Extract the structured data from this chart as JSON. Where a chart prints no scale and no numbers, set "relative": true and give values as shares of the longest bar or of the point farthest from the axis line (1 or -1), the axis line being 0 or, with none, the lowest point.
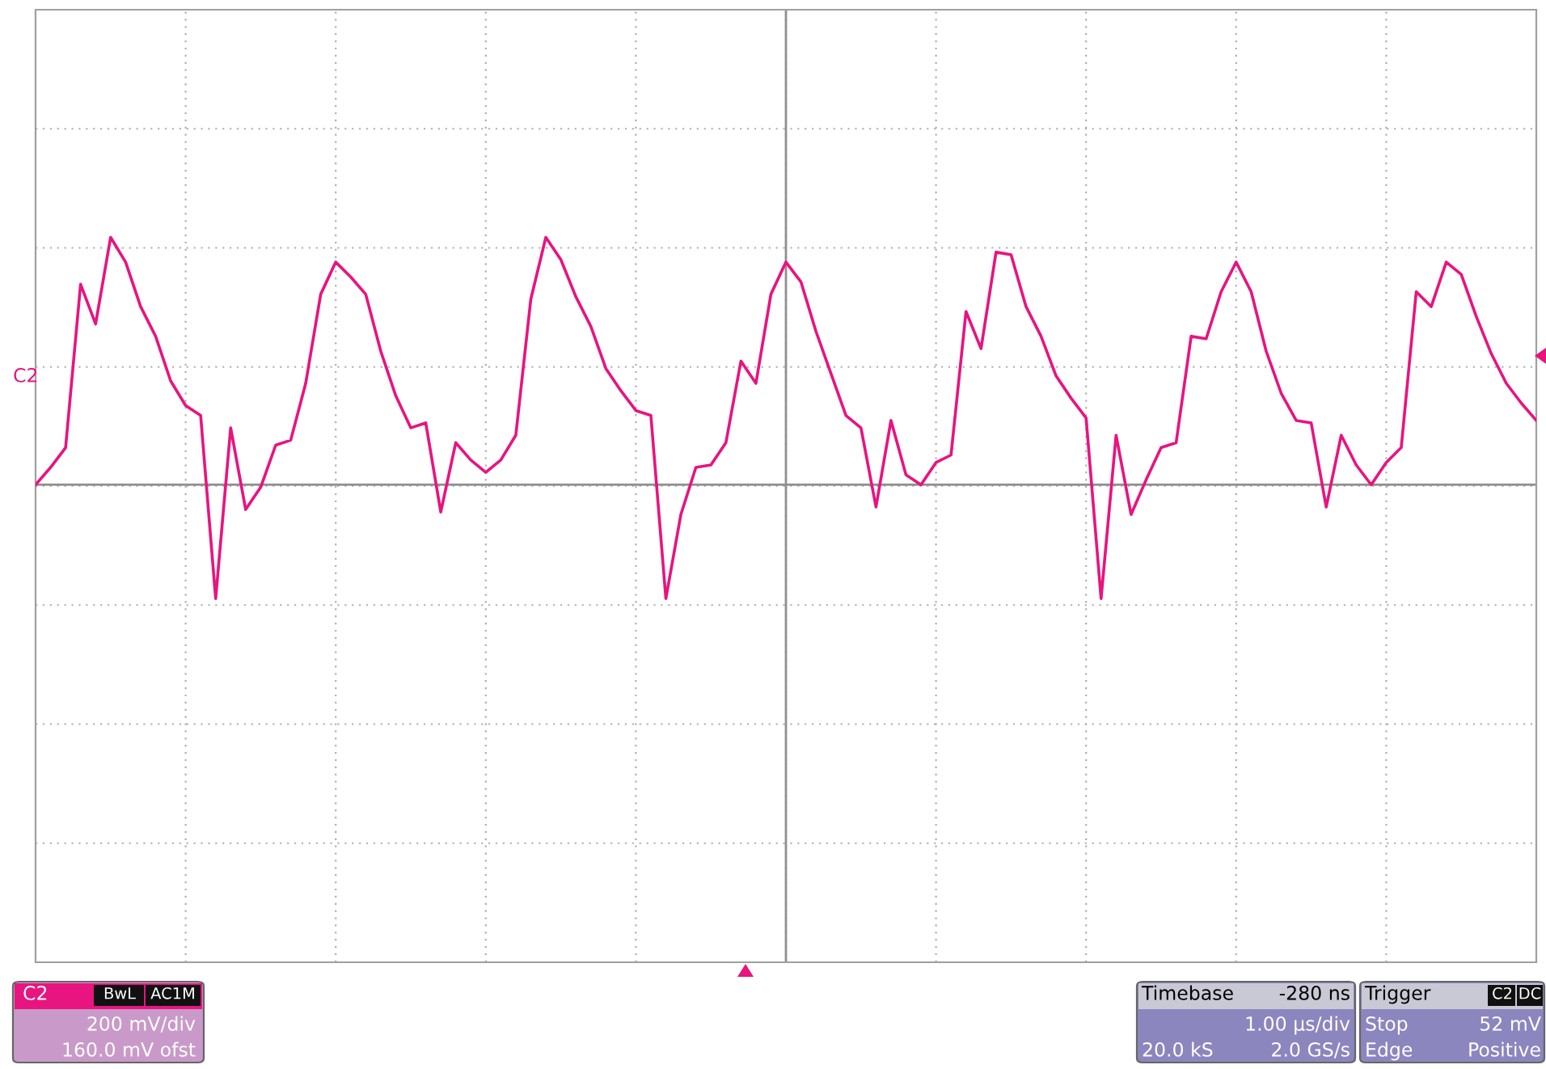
{
  "chart_data": {
    "type": "line",
    "relative": true,
    "grid": true,
    "marker": "none",
    "line_style": "solid",
    "categories": [
      null,
      null,
      null,
      null,
      null,
      null,
      null,
      null,
      null,
      null,
      null,
      null,
      null,
      null,
      null,
      null,
      null,
      null,
      null,
      null,
      null,
      null,
      null,
      null,
      null,
      null,
      null,
      null,
      null,
      null,
      null,
      null,
      null,
      null,
      null,
      null,
      null,
      null,
      null,
      null,
      null,
      null,
      null,
      null,
      null,
      null,
      null,
      null,
      null,
      null,
      null,
      null,
      null,
      null,
      null,
      null,
      null,
      null,
      null,
      null,
      null,
      null,
      null,
      null,
      null,
      null,
      null,
      null,
      null,
      null,
      null,
      null,
      null,
      null,
      null,
      null,
      null,
      null,
      null,
      null,
      null,
      null,
      null,
      null,
      null,
      null,
      null,
      null,
      null,
      null,
      null,
      null,
      null,
      null,
      null,
      null,
      null,
      null,
      null,
      null,
      null
    ],
    "series": [
      {
        "color": "#e8147f",
        "values": [
          0.0,
          0.07,
          0.15,
          0.81,
          0.65,
          1.0,
          0.9,
          0.72,
          0.6,
          0.42,
          0.32,
          0.28,
          -0.46,
          0.23,
          -0.1,
          -0.01,
          0.16,
          0.18,
          0.41,
          0.77,
          0.9,
          0.84,
          0.77,
          0.54,
          0.36,
          0.23,
          0.25,
          -0.11,
          0.17,
          0.1,
          0.05,
          0.1,
          0.2,
          0.75,
          1.0,
          0.91,
          0.76,
          0.64,
          0.47,
          0.38,
          0.3,
          0.28,
          -0.46,
          -0.12,
          0.07,
          0.08,
          0.17,
          0.5,
          0.41,
          0.77,
          0.9,
          0.82,
          0.62,
          0.45,
          0.28,
          0.23,
          -0.09,
          0.26,
          0.04,
          0.0,
          0.09,
          0.12,
          0.7,
          0.55,
          0.94,
          0.93,
          0.72,
          0.6,
          0.44,
          0.35,
          0.27,
          -0.46,
          0.2,
          -0.12,
          0.02,
          0.15,
          0.17,
          0.6,
          0.59,
          0.78,
          0.9,
          0.78,
          0.54,
          0.37,
          0.26,
          0.25,
          -0.09,
          0.2,
          0.08,
          0.0,
          0.09,
          0.15,
          0.78,
          0.72,
          0.9,
          0.85,
          0.68,
          0.53,
          0.41,
          0.33,
          0.26
        ]
      }
    ],
    "annotations": [
      "C2",
      "C2",
      "BwL",
      "AC1M",
      "200 mV/div",
      "160.0 mV ofst",
      "Timebase",
      "-280 ns",
      "1.00 µs/div",
      "20.0 kS",
      "2.0 GS/s",
      "Trigger",
      "C2",
      "DC",
      "Stop",
      "52 mV",
      "Edge",
      "Positive"
    ]
  }
}
